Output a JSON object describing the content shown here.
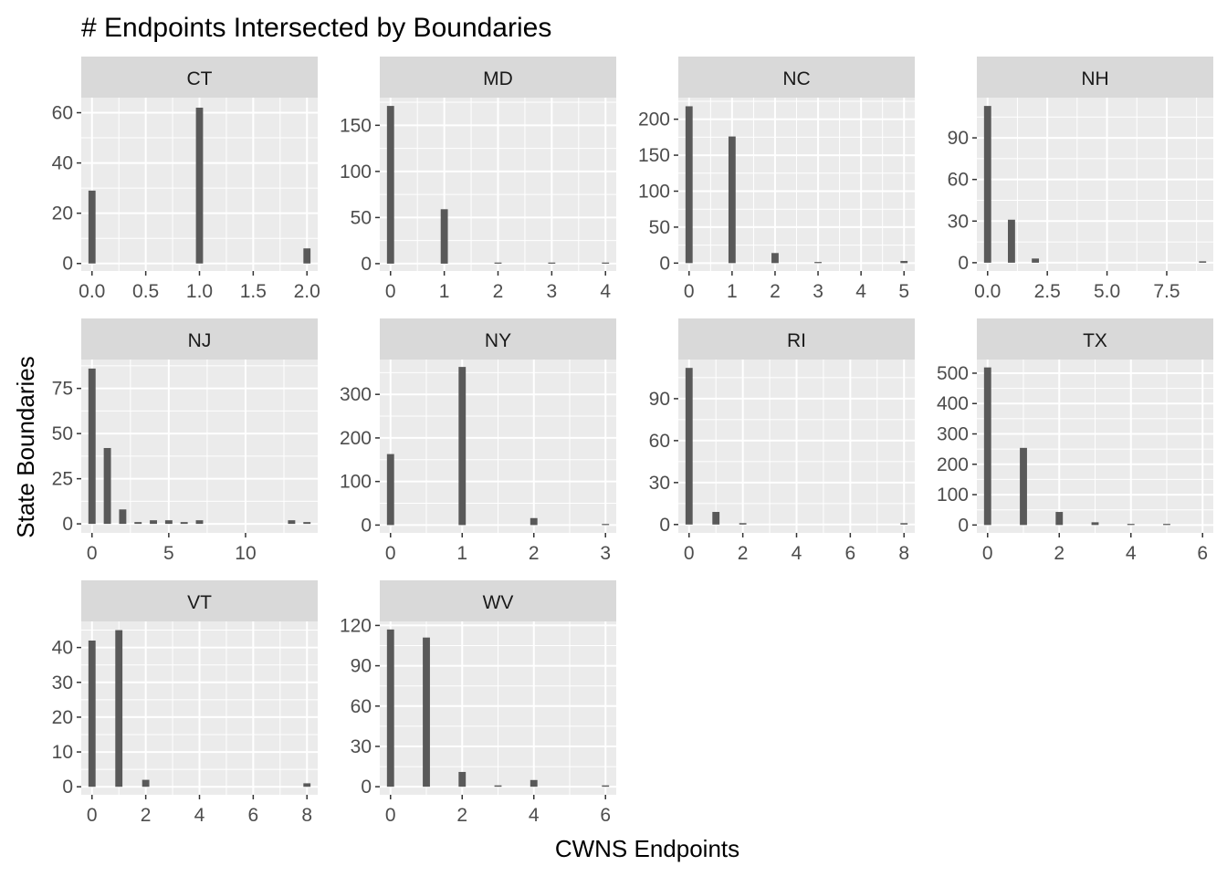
{
  "chart_data": {
    "type": "bar",
    "title": "# Endpoints Intersected by Boundaries",
    "xlabel": "CWNS Endpoints",
    "ylabel": "State Boundaries",
    "layout": "facet-wrap",
    "ncol": 4,
    "scales": "free",
    "grid": true,
    "colors": {
      "bar": "#595959",
      "panel_bg": "#ebebeb",
      "strip_bg": "#d9d9d9",
      "grid": "#ffffff",
      "tick_text": "#4d4d4d",
      "strip_text": "#1a1a1a"
    },
    "panels": [
      {
        "label": "CT",
        "xlim": [
          -0.1,
          2.1
        ],
        "ylim": [
          -3,
          66
        ],
        "xticks": [
          0,
          0.5,
          1,
          1.5,
          2
        ],
        "xtick_labels": [
          "0.0",
          "0.5",
          "1.0",
          "1.5",
          "2.0"
        ],
        "yticks": [
          0,
          20,
          40,
          60
        ],
        "ytick_labels": [
          "0",
          "20",
          "40",
          "60"
        ],
        "bar_width": 0.066,
        "x": [
          0,
          1,
          2
        ],
        "values": [
          29,
          62,
          6
        ]
      },
      {
        "label": "MD",
        "xlim": [
          -0.2,
          4.2
        ],
        "ylim": [
          -8,
          180
        ],
        "xticks": [
          0,
          1,
          2,
          3,
          4
        ],
        "xtick_labels": [
          "0",
          "1",
          "2",
          "3",
          "4"
        ],
        "yticks": [
          0,
          50,
          100,
          150
        ],
        "ytick_labels": [
          "0",
          "50",
          "100",
          "150"
        ],
        "bar_width": 0.133,
        "x": [
          0,
          1,
          2,
          3,
          4
        ],
        "values": [
          171,
          59,
          1,
          1,
          1
        ]
      },
      {
        "label": "NC",
        "xlim": [
          -0.25,
          5.25
        ],
        "ylim": [
          -11,
          230
        ],
        "xticks": [
          0,
          1,
          2,
          3,
          4,
          5
        ],
        "xtick_labels": [
          "0",
          "1",
          "2",
          "3",
          "4",
          "5"
        ],
        "yticks": [
          0,
          50,
          100,
          150,
          200
        ],
        "ytick_labels": [
          "0",
          "50",
          "100",
          "150",
          "200"
        ],
        "bar_width": 0.166,
        "x": [
          0,
          1,
          2,
          3,
          5
        ],
        "values": [
          218,
          176,
          14,
          1,
          3
        ]
      },
      {
        "label": "NH",
        "xlim": [
          -0.45,
          9.45
        ],
        "ylim": [
          -6,
          119
        ],
        "xticks": [
          0,
          2.5,
          5,
          7.5
        ],
        "xtick_labels": [
          "0.0",
          "2.5",
          "5.0",
          "7.5"
        ],
        "yticks": [
          0,
          30,
          60,
          90
        ],
        "ytick_labels": [
          "0",
          "30",
          "60",
          "90"
        ],
        "bar_width": 0.3,
        "x": [
          0,
          1,
          2,
          9
        ],
        "values": [
          113,
          31,
          3,
          1
        ]
      },
      {
        "label": "NJ",
        "xlim": [
          -0.7,
          14.7
        ],
        "ylim": [
          -5,
          91
        ],
        "xticks": [
          0,
          5,
          10
        ],
        "xtick_labels": [
          "0",
          "5",
          "10"
        ],
        "yticks": [
          0,
          25,
          50,
          75
        ],
        "ytick_labels": [
          "0",
          "25",
          "50",
          "75"
        ],
        "bar_width": 0.47,
        "x": [
          0,
          1,
          2,
          3,
          4,
          5,
          6,
          7,
          13,
          14
        ],
        "values": [
          86,
          42,
          8,
          1,
          2,
          2,
          1,
          2,
          2,
          1
        ]
      },
      {
        "label": "NY",
        "xlim": [
          -0.15,
          3.15
        ],
        "ylim": [
          -18,
          380
        ],
        "xticks": [
          0,
          1,
          2,
          3
        ],
        "xtick_labels": [
          "0",
          "1",
          "2",
          "3"
        ],
        "yticks": [
          0,
          100,
          200,
          300
        ],
        "ytick_labels": [
          "0",
          "100",
          "200",
          "300"
        ],
        "bar_width": 0.1,
        "x": [
          0,
          1,
          2,
          3
        ],
        "values": [
          163,
          363,
          16,
          1
        ]
      },
      {
        "label": "RI",
        "xlim": [
          -0.4,
          8.4
        ],
        "ylim": [
          -6,
          118
        ],
        "xticks": [
          0,
          2,
          4,
          6,
          8
        ],
        "xtick_labels": [
          "0",
          "2",
          "4",
          "6",
          "8"
        ],
        "yticks": [
          0,
          30,
          60,
          90
        ],
        "ytick_labels": [
          "0",
          "30",
          "60",
          "90"
        ],
        "bar_width": 0.266,
        "x": [
          0,
          1,
          2,
          8
        ],
        "values": [
          112,
          9,
          1,
          1
        ]
      },
      {
        "label": "TX",
        "xlim": [
          -0.3,
          6.3
        ],
        "ylim": [
          -26,
          545
        ],
        "xticks": [
          0,
          2,
          4,
          6
        ],
        "xtick_labels": [
          "0",
          "2",
          "4",
          "6"
        ],
        "yticks": [
          0,
          100,
          200,
          300,
          400,
          500
        ],
        "ytick_labels": [
          "0",
          "100",
          "200",
          "300",
          "400",
          "500"
        ],
        "bar_width": 0.2,
        "x": [
          0,
          1,
          2,
          3,
          4,
          5
        ],
        "values": [
          519,
          254,
          43,
          9,
          3,
          2
        ]
      },
      {
        "label": "VT",
        "xlim": [
          -0.4,
          8.4
        ],
        "ylim": [
          -2.3,
          47.5
        ],
        "xticks": [
          0,
          2,
          4,
          6,
          8
        ],
        "xtick_labels": [
          "0",
          "2",
          "4",
          "6",
          "8"
        ],
        "yticks": [
          0,
          10,
          20,
          30,
          40
        ],
        "ytick_labels": [
          "0",
          "10",
          "20",
          "30",
          "40"
        ],
        "bar_width": 0.266,
        "x": [
          0,
          1,
          2,
          8
        ],
        "values": [
          42,
          45,
          2,
          1
        ]
      },
      {
        "label": "WV",
        "xlim": [
          -0.3,
          6.3
        ],
        "ylim": [
          -6,
          123
        ],
        "xticks": [
          0,
          2,
          4,
          6
        ],
        "xtick_labels": [
          "0",
          "2",
          "4",
          "6"
        ],
        "yticks": [
          0,
          30,
          60,
          90,
          120
        ],
        "ytick_labels": [
          "0",
          "30",
          "60",
          "90",
          "120"
        ],
        "bar_width": 0.2,
        "x": [
          0,
          1,
          2,
          3,
          4,
          6
        ],
        "values": [
          117,
          111,
          11,
          1,
          5,
          1
        ]
      }
    ]
  }
}
